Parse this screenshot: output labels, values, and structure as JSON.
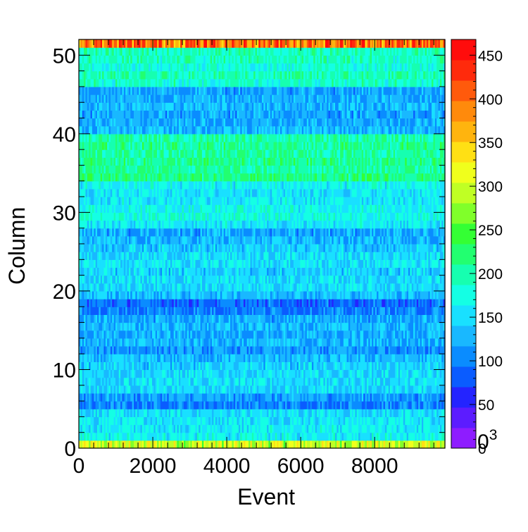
{
  "chart_data": {
    "type": "heatmap",
    "title": "",
    "xlabel": "Event",
    "ylabel": "Column",
    "xlim": [
      0,
      9900
    ],
    "ylim": [
      0,
      52
    ],
    "x_ticks": [
      0,
      2000,
      4000,
      6000,
      8000
    ],
    "y_ticks": [
      0,
      10,
      20,
      30,
      40,
      50
    ],
    "grid": false,
    "colorbar": {
      "range": [
        0,
        468
      ],
      "ticks": [
        0,
        50,
        100,
        150,
        200,
        250,
        300,
        350,
        400,
        450
      ],
      "exponent_label": "0",
      "exponent_power": "3",
      "palette": [
        "#8e1cff",
        "#5c1cff",
        "#2424ff",
        "#0a5cff",
        "#0a8cff",
        "#19b8ff",
        "#19e0ff",
        "#14ffe4",
        "#16ffb0",
        "#22ff70",
        "#34ff34",
        "#80ff2a",
        "#c0ff24",
        "#f0ff1c",
        "#ffe014",
        "#ffb40e",
        "#ff8a0c",
        "#ff5a0c",
        "#ff2a0c",
        "#ff0c0c"
      ]
    },
    "x_bins": 220,
    "y_bins": 52,
    "column_mean_counts": [
      300,
      165,
      160,
      160,
      150,
      100,
      115,
      145,
      150,
      148,
      142,
      130,
      112,
      128,
      122,
      130,
      120,
      100,
      90,
      135,
      148,
      150,
      142,
      155,
      150,
      140,
      128,
      120,
      160,
      178,
      168,
      160,
      158,
      165,
      215,
      205,
      210,
      205,
      210,
      200,
      130,
      122,
      118,
      130,
      122,
      120,
      185,
      195,
      180,
      190,
      192,
      400
    ]
  }
}
